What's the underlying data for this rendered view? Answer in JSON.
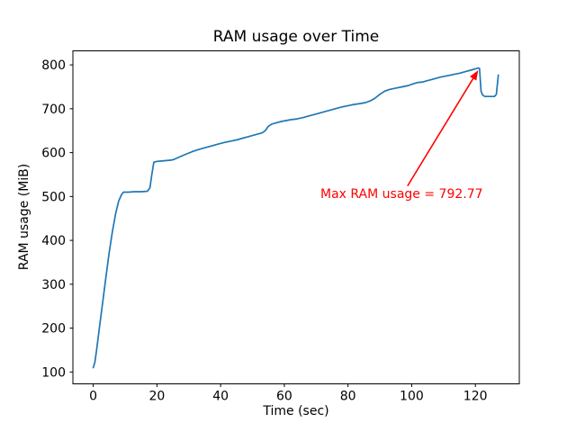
{
  "figure": {
    "background": "#ffffff",
    "text_color": "#000000",
    "spine_color": "#000000"
  },
  "chart_data": {
    "type": "line",
    "title": "RAM usage over Time",
    "xlabel": "Time (sec)",
    "ylabel": "RAM usage (MiB)",
    "x_ticks": [
      0,
      20,
      40,
      60,
      80,
      100,
      120
    ],
    "y_ticks": [
      100,
      200,
      300,
      400,
      500,
      600,
      700,
      800
    ],
    "xlim": [
      -6.4,
      133.8
    ],
    "ylim": [
      73,
      832
    ],
    "grid": false,
    "legend": null,
    "line_color": "#1f77b4",
    "max_value": 792.77,
    "series": [
      {
        "name": "RAM usage",
        "points": [
          [
            0,
            110
          ],
          [
            0.5,
            122
          ],
          [
            1,
            148
          ],
          [
            2,
            205
          ],
          [
            3,
            262
          ],
          [
            4,
            318
          ],
          [
            5,
            372
          ],
          [
            6,
            420
          ],
          [
            7,
            460
          ],
          [
            8,
            490
          ],
          [
            9,
            506
          ],
          [
            9.5,
            510
          ],
          [
            11,
            510
          ],
          [
            13,
            511
          ],
          [
            15,
            511
          ],
          [
            17,
            512
          ],
          [
            17.8,
            520
          ],
          [
            18.4,
            550
          ],
          [
            19,
            578
          ],
          [
            20,
            580
          ],
          [
            21.5,
            581
          ],
          [
            23,
            582
          ],
          [
            24.5,
            583
          ],
          [
            25.5,
            585
          ],
          [
            27,
            590
          ],
          [
            29,
            596
          ],
          [
            31,
            602
          ],
          [
            33,
            607
          ],
          [
            35,
            611
          ],
          [
            37,
            615
          ],
          [
            39,
            619
          ],
          [
            41,
            623
          ],
          [
            43,
            626
          ],
          [
            45,
            629
          ],
          [
            47,
            633
          ],
          [
            49,
            637
          ],
          [
            51,
            641
          ],
          [
            53,
            645
          ],
          [
            54,
            650
          ],
          [
            55,
            660
          ],
          [
            56,
            665
          ],
          [
            57.5,
            668
          ],
          [
            59,
            671
          ],
          [
            60.5,
            673
          ],
          [
            62,
            675
          ],
          [
            64,
            677
          ],
          [
            66,
            680
          ],
          [
            68,
            684
          ],
          [
            70,
            688
          ],
          [
            72,
            692
          ],
          [
            74,
            696
          ],
          [
            76,
            700
          ],
          [
            78,
            704
          ],
          [
            80,
            707
          ],
          [
            82,
            710
          ],
          [
            84,
            712
          ],
          [
            85.5,
            714
          ],
          [
            87,
            718
          ],
          [
            88.5,
            724
          ],
          [
            90,
            733
          ],
          [
            91.5,
            740
          ],
          [
            93,
            744
          ],
          [
            95,
            747
          ],
          [
            97,
            750
          ],
          [
            99,
            753
          ],
          [
            100.5,
            757
          ],
          [
            102,
            760
          ],
          [
            103.5,
            761
          ],
          [
            105,
            764
          ],
          [
            107,
            768
          ],
          [
            109,
            772
          ],
          [
            111,
            775
          ],
          [
            113,
            778
          ],
          [
            115,
            781
          ],
          [
            117,
            785
          ],
          [
            119,
            789
          ],
          [
            120,
            791
          ],
          [
            120.8,
            792.77
          ],
          [
            121.3,
            792
          ],
          [
            121.8,
            740
          ],
          [
            122.3,
            731
          ],
          [
            123,
            728
          ],
          [
            124.5,
            728
          ],
          [
            126,
            728
          ],
          [
            126.6,
            733
          ],
          [
            127.2,
            777
          ]
        ]
      }
    ],
    "annotation": {
      "text": "Max RAM usage = 792.77",
      "color": "#ff0000",
      "text_xy": [
        71.2,
        522
      ],
      "arrow_tail_xy": [
        98.7,
        524
      ],
      "arrow_tip_xy": [
        120.9,
        788
      ]
    }
  }
}
